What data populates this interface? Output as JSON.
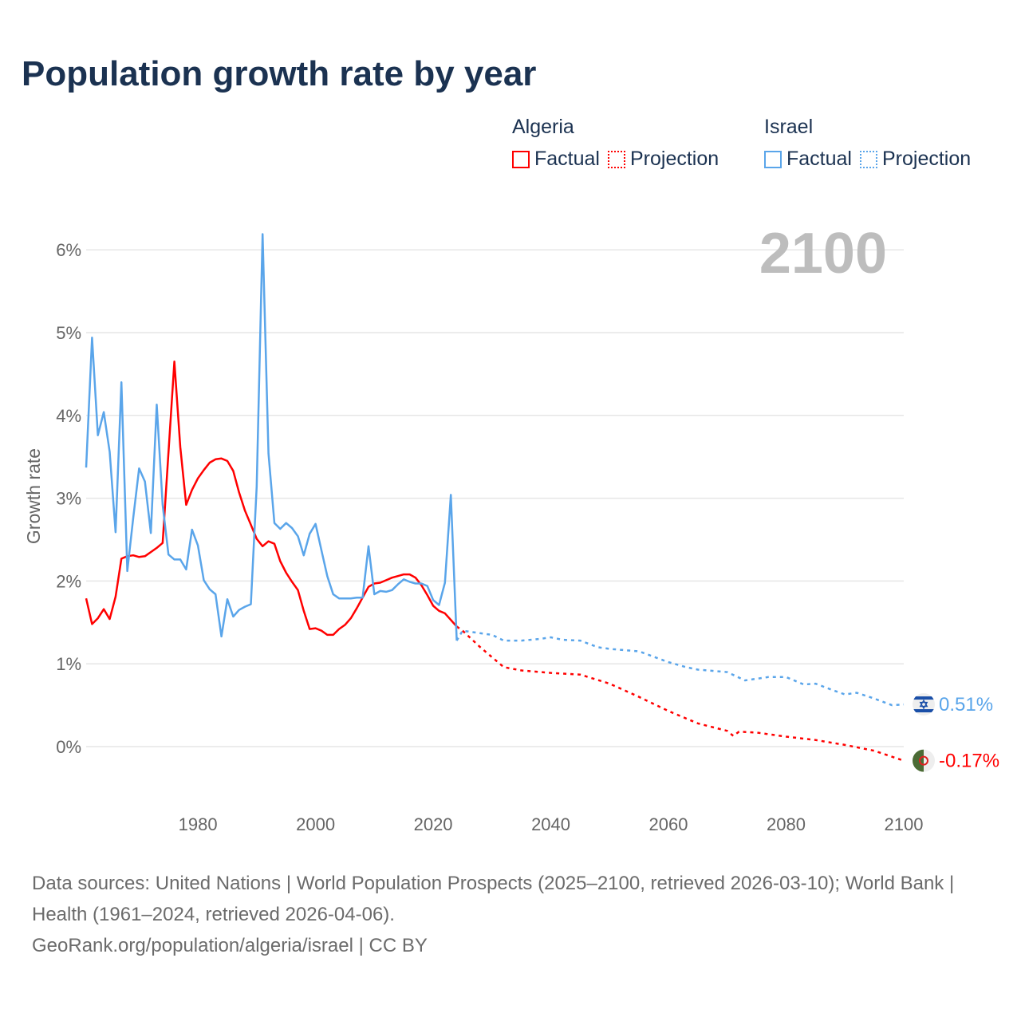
{
  "title": "Population growth rate by year",
  "legend": {
    "groups": [
      {
        "name": "Algeria",
        "color": "#ff0000",
        "factual": "Factual",
        "projection": "Projection"
      },
      {
        "name": "Israel",
        "color": "#5aa5ea",
        "factual": "Factual",
        "projection": "Projection"
      }
    ]
  },
  "year_label": "2100",
  "footer": {
    "sources": "Data sources: United Nations | World Population Prospects (2025–2100, retrieved 2026-03-10); World Bank | Health (1961–2024, retrieved 2026-04-06).",
    "link": "GeoRank.org/population/algeria/israel | CC BY"
  },
  "chart_data": {
    "type": "line",
    "title": "Population growth rate by year",
    "xlabel": "",
    "ylabel": "Growth rate",
    "xlim": [
      1961,
      2100
    ],
    "ylim": [
      -0.6,
      6.2
    ],
    "x_ticks": [
      1980,
      2000,
      2020,
      2040,
      2060,
      2080,
      2100
    ],
    "x_tick_labels": [
      "1980",
      "2000",
      "2020",
      "2040",
      "2060",
      "2080",
      "2100"
    ],
    "y_ticks": [
      0,
      1,
      2,
      3,
      4,
      5,
      6
    ],
    "y_tick_labels": [
      "0%",
      "1%",
      "2%",
      "3%",
      "4%",
      "5%",
      "6%"
    ],
    "grid": true,
    "legend_position": "top-right",
    "series": [
      {
        "name": "Algeria",
        "kind": "factual",
        "color": "#ff0000",
        "x": [
          1961,
          1962,
          1963,
          1964,
          1965,
          1966,
          1967,
          1968,
          1969,
          1970,
          1971,
          1972,
          1973,
          1974,
          1975,
          1976,
          1977,
          1978,
          1979,
          1980,
          1981,
          1982,
          1983,
          1984,
          1985,
          1986,
          1987,
          1988,
          1989,
          1990,
          1991,
          1992,
          1993,
          1994,
          1995,
          1996,
          1997,
          1998,
          1999,
          2000,
          2001,
          2002,
          2003,
          2004,
          2005,
          2006,
          2007,
          2008,
          2009,
          2010,
          2011,
          2012,
          2013,
          2014,
          2015,
          2016,
          2017,
          2018,
          2019,
          2020,
          2021,
          2022,
          2023,
          2024
        ],
        "y": [
          1.79,
          1.48,
          1.55,
          1.66,
          1.54,
          1.81,
          2.27,
          2.3,
          2.31,
          2.29,
          2.3,
          2.35,
          2.4,
          2.46,
          3.55,
          4.65,
          3.62,
          2.92,
          3.1,
          3.24,
          3.34,
          3.43,
          3.47,
          3.48,
          3.45,
          3.33,
          3.07,
          2.85,
          2.68,
          2.51,
          2.42,
          2.48,
          2.45,
          2.24,
          2.1,
          1.99,
          1.89,
          1.64,
          1.42,
          1.43,
          1.4,
          1.35,
          1.35,
          1.42,
          1.47,
          1.55,
          1.67,
          1.8,
          1.93,
          1.97,
          1.98,
          2.01,
          2.04,
          2.06,
          2.08,
          2.08,
          2.04,
          1.95,
          1.83,
          1.7,
          1.64,
          1.61,
          1.53,
          1.45
        ]
      },
      {
        "name": "Algeria",
        "kind": "projection",
        "color": "#ff0000",
        "x": [
          2024,
          2025,
          2028,
          2030,
          2032,
          2035,
          2040,
          2045,
          2050,
          2055,
          2060,
          2065,
          2070,
          2071,
          2072,
          2075,
          2080,
          2085,
          2090,
          2095,
          2100
        ],
        "y": [
          1.45,
          1.4,
          1.2,
          1.08,
          0.96,
          0.92,
          0.89,
          0.87,
          0.76,
          0.6,
          0.43,
          0.28,
          0.19,
          0.13,
          0.18,
          0.17,
          0.12,
          0.08,
          0.02,
          -0.05,
          -0.17
        ]
      },
      {
        "name": "Israel",
        "kind": "factual",
        "color": "#5aa5ea",
        "x": [
          1961,
          1962,
          1963,
          1964,
          1965,
          1966,
          1967,
          1968,
          1969,
          1970,
          1971,
          1972,
          1973,
          1974,
          1975,
          1976,
          1977,
          1978,
          1979,
          1980,
          1981,
          1982,
          1983,
          1984,
          1985,
          1986,
          1987,
          1988,
          1989,
          1990,
          1991,
          1992,
          1993,
          1994,
          1995,
          1996,
          1997,
          1998,
          1999,
          2000,
          2001,
          2002,
          2003,
          2004,
          2005,
          2006,
          2007,
          2008,
          2009,
          2010,
          2011,
          2012,
          2013,
          2014,
          2015,
          2016,
          2017,
          2018,
          2019,
          2020,
          2021,
          2022,
          2023,
          2024
        ],
        "y": [
          3.37,
          4.94,
          3.76,
          4.04,
          3.56,
          2.59,
          4.4,
          2.12,
          2.76,
          3.36,
          3.2,
          2.58,
          4.13,
          2.92,
          2.32,
          2.26,
          2.26,
          2.14,
          2.62,
          2.43,
          2.01,
          1.9,
          1.84,
          1.33,
          1.78,
          1.57,
          1.65,
          1.69,
          1.72,
          3.14,
          6.19,
          3.54,
          2.7,
          2.63,
          2.7,
          2.64,
          2.54,
          2.31,
          2.57,
          2.69,
          2.37,
          2.06,
          1.84,
          1.79,
          1.79,
          1.79,
          1.8,
          1.8,
          2.42,
          1.84,
          1.88,
          1.87,
          1.89,
          1.96,
          2.02,
          1.99,
          1.97,
          1.97,
          1.94,
          1.77,
          1.71,
          1.98,
          3.04,
          1.28
        ]
      },
      {
        "name": "Israel",
        "kind": "projection",
        "color": "#5aa5ea",
        "x": [
          2024,
          2025,
          2030,
          2032,
          2035,
          2038,
          2040,
          2042,
          2045,
          2048,
          2050,
          2055,
          2060,
          2063,
          2065,
          2070,
          2073,
          2077,
          2080,
          2083,
          2085,
          2088,
          2090,
          2092,
          2095,
          2098,
          2100
        ],
        "y": [
          1.28,
          1.4,
          1.35,
          1.28,
          1.28,
          1.3,
          1.32,
          1.29,
          1.28,
          1.2,
          1.18,
          1.15,
          1.02,
          0.96,
          0.93,
          0.9,
          0.8,
          0.84,
          0.84,
          0.75,
          0.76,
          0.68,
          0.63,
          0.65,
          0.58,
          0.5,
          0.51
        ]
      }
    ],
    "end_labels": [
      {
        "name": "Israel",
        "value": 0.51,
        "label": "0.51%",
        "color": "#5aa5ea",
        "flag": "israel-flag"
      },
      {
        "name": "Algeria",
        "value": -0.17,
        "label": "-0.17%",
        "color": "#ff0000",
        "flag": "algeria-flag"
      }
    ]
  }
}
